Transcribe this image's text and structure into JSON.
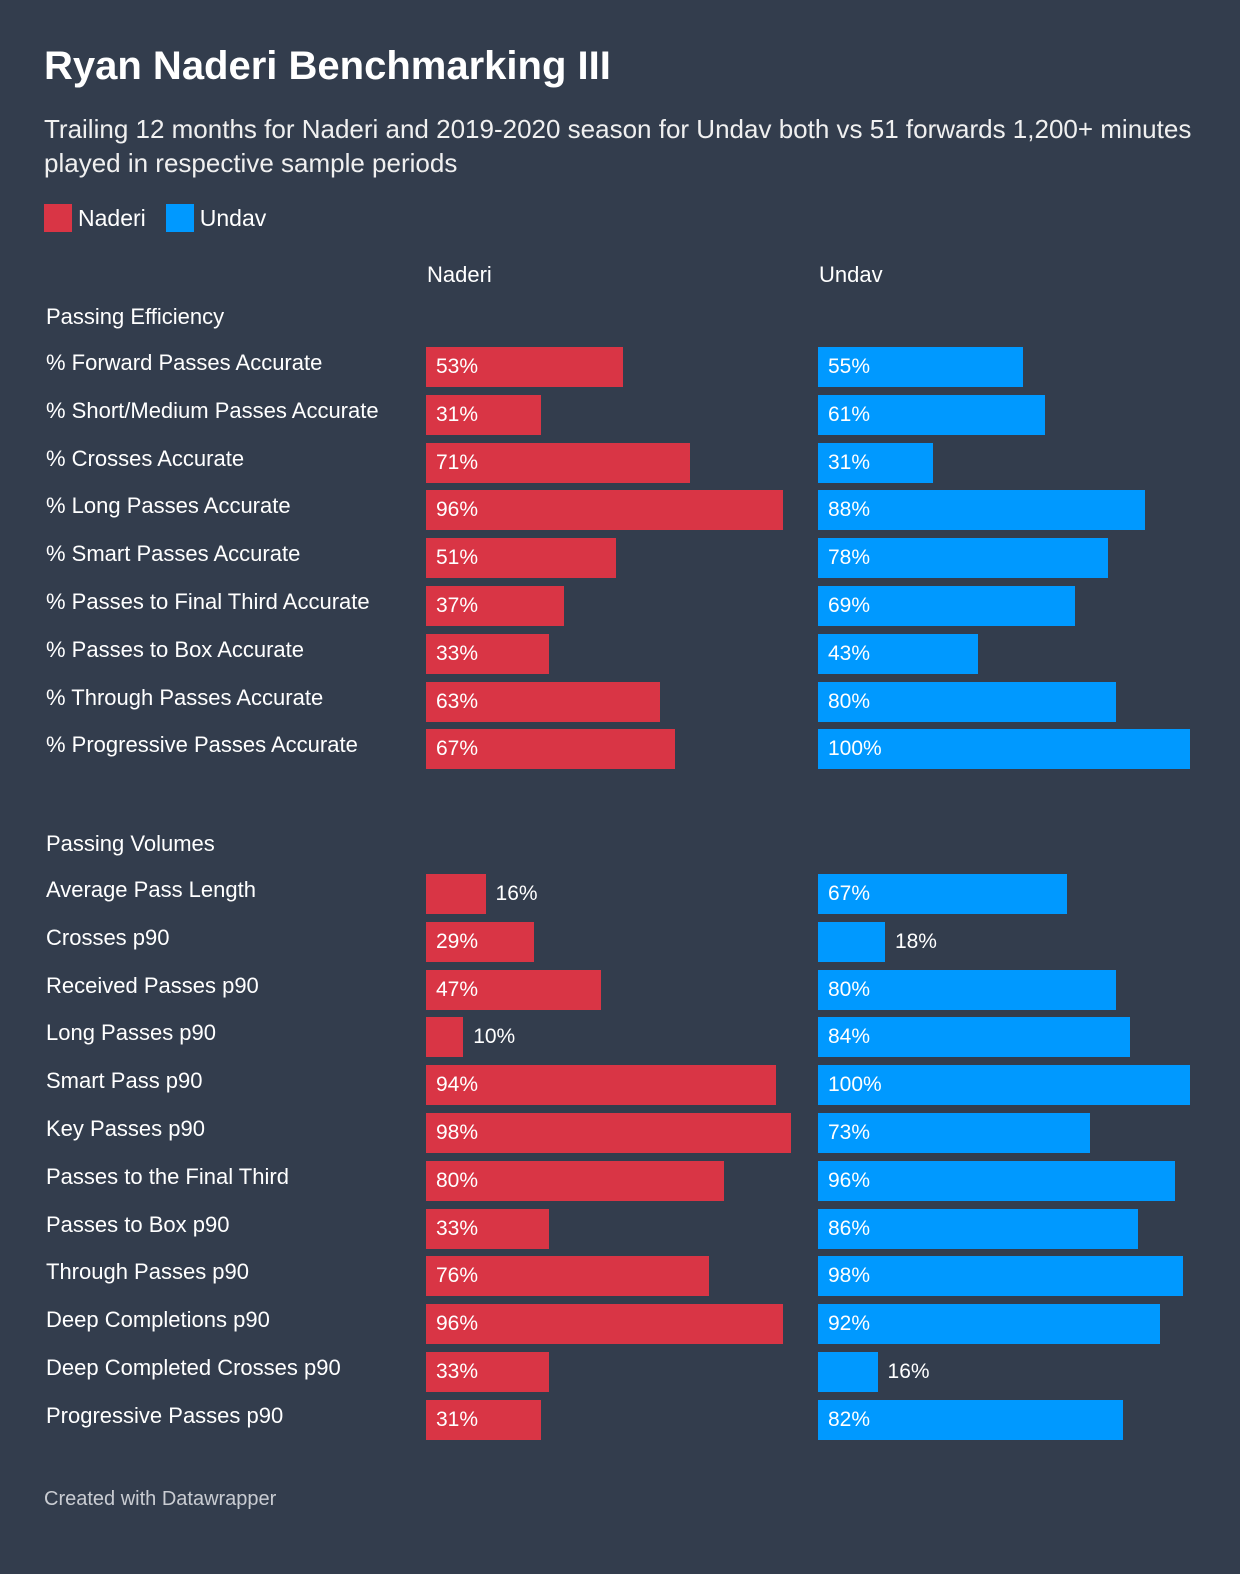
{
  "title": "Ryan Naderi Benchmarking III",
  "subtitle": "Trailing 12 months for Naderi and 2019-2020 season for Undav both vs 51 forwards 1,200+ minutes played in respective sample periods",
  "footer": "Created with Datawrapper",
  "colors": {
    "naderi": "#d93545",
    "undav": "#0099ff",
    "background": "#333d4d"
  },
  "chart_data": {
    "type": "bar",
    "legend": [
      "Naderi",
      "Undav"
    ],
    "columns": [
      "Naderi",
      "Undav"
    ],
    "unit": "%",
    "xlim": [
      0,
      100
    ],
    "sections": [
      {
        "name": "Passing Efficiency",
        "rows": [
          {
            "label": "% Forward Passes Accurate",
            "naderi": 53,
            "undav": 55
          },
          {
            "label": "% Short/Medium Passes Accurate",
            "naderi": 31,
            "undav": 61
          },
          {
            "label": "% Crosses Accurate",
            "naderi": 71,
            "undav": 31
          },
          {
            "label": "% Long Passes Accurate",
            "naderi": 96,
            "undav": 88
          },
          {
            "label": "% Smart Passes Accurate",
            "naderi": 51,
            "undav": 78
          },
          {
            "label": "% Passes to Final Third Accurate",
            "naderi": 37,
            "undav": 69
          },
          {
            "label": "% Passes to Box Accurate",
            "naderi": 33,
            "undav": 43
          },
          {
            "label": "% Through Passes Accurate",
            "naderi": 63,
            "undav": 80
          },
          {
            "label": "% Progressive Passes Accurate",
            "naderi": 67,
            "undav": 100
          }
        ]
      },
      {
        "name": "Passing Volumes",
        "rows": [
          {
            "label": "Average Pass Length",
            "naderi": 16,
            "undav": 67
          },
          {
            "label": "Crosses p90",
            "naderi": 29,
            "undav": 18
          },
          {
            "label": "Received Passes p90",
            "naderi": 47,
            "undav": 80
          },
          {
            "label": "Long Passes p90",
            "naderi": 10,
            "undav": 84
          },
          {
            "label": "Smart Pass p90",
            "naderi": 94,
            "undav": 100
          },
          {
            "label": "Key Passes p90",
            "naderi": 98,
            "undav": 73
          },
          {
            "label": "Passes to the Final Third",
            "naderi": 80,
            "undav": 96
          },
          {
            "label": "Passes to Box p90",
            "naderi": 33,
            "undav": 86
          },
          {
            "label": "Through Passes p90",
            "naderi": 76,
            "undav": 98
          },
          {
            "label": "Deep Completions p90",
            "naderi": 96,
            "undav": 92
          },
          {
            "label": "Deep Completed Crosses p90",
            "naderi": 33,
            "undav": 16
          },
          {
            "label": "Progressive Passes p90",
            "naderi": 31,
            "undav": 82
          }
        ]
      }
    ]
  }
}
